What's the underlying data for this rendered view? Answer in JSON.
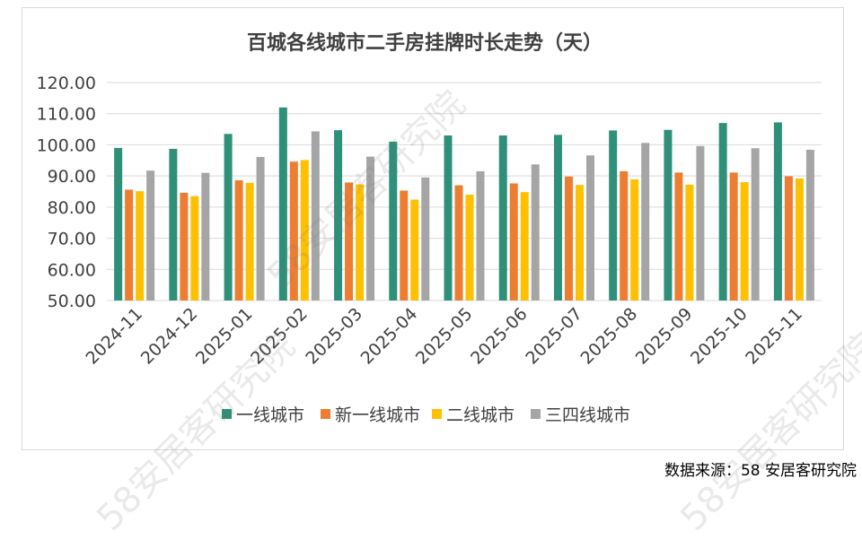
{
  "source_note": "数据来源：58 安居客研究院",
  "watermark": "58安居客研究院",
  "colors": {
    "tier1": "#2e9079",
    "new_tier1": "#ed7d31",
    "tier2": "#ffc000",
    "tier34": "#a5a5a5",
    "grid": "#d9d9d9",
    "text": "#404040"
  },
  "chart_data": {
    "type": "bar",
    "title": "百城各线城市二手房挂牌时长走势（天）",
    "categories": [
      "2024-11",
      "2024-12",
      "2025-01",
      "2025-02",
      "2025-03",
      "2025-04",
      "2025-05",
      "2025-06",
      "2025-07",
      "2025-08",
      "2025-09",
      "2025-10",
      "2025-11"
    ],
    "series": [
      {
        "name": "一线城市",
        "color": "#2e9079",
        "values": [
          99.0,
          98.7,
          103.5,
          112.0,
          104.7,
          101.0,
          103.0,
          103.0,
          103.2,
          104.6,
          104.8,
          107.0,
          107.2
        ]
      },
      {
        "name": "新一线城市",
        "color": "#ed7d31",
        "values": [
          85.6,
          84.6,
          88.6,
          94.6,
          87.9,
          85.3,
          87.0,
          87.6,
          89.8,
          91.5,
          91.1,
          91.1,
          89.9
        ]
      },
      {
        "name": "二线城市",
        "color": "#ffc000",
        "values": [
          85.1,
          83.5,
          87.8,
          95.1,
          87.3,
          82.4,
          84.0,
          84.8,
          87.1,
          88.9,
          87.2,
          88.0,
          89.2
        ]
      },
      {
        "name": "三四线城市",
        "color": "#a5a5a5",
        "values": [
          91.7,
          91.0,
          96.1,
          104.3,
          96.2,
          89.5,
          91.5,
          93.7,
          96.6,
          100.6,
          99.6,
          98.9,
          98.4
        ]
      }
    ],
    "y_ticks": [
      "50.00",
      "60.00",
      "70.00",
      "80.00",
      "90.00",
      "100.00",
      "110.00",
      "120.00"
    ],
    "ylim": [
      50,
      120
    ],
    "grid": true,
    "legend_position": "bottom"
  }
}
